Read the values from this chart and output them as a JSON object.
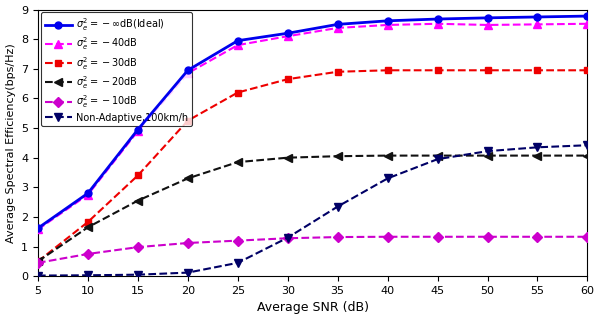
{
  "snr": [
    5,
    10,
    15,
    20,
    25,
    30,
    35,
    40,
    45,
    50,
    55,
    60
  ],
  "ideal": [
    1.62,
    2.8,
    4.95,
    6.95,
    7.95,
    8.2,
    8.5,
    8.62,
    8.68,
    8.72,
    8.75,
    8.78
  ],
  "m40dB": [
    1.58,
    2.75,
    4.9,
    6.85,
    7.8,
    8.1,
    8.38,
    8.48,
    8.52,
    8.48,
    8.5,
    8.52
  ],
  "m30dB": [
    0.5,
    1.83,
    3.4,
    5.25,
    6.2,
    6.65,
    6.9,
    6.95,
    6.95,
    6.95,
    6.95,
    6.95
  ],
  "m20dB": [
    0.5,
    1.65,
    2.55,
    3.3,
    3.85,
    4.0,
    4.05,
    4.07,
    4.07,
    4.07,
    4.07,
    4.07
  ],
  "m10dB": [
    0.45,
    0.75,
    0.98,
    1.12,
    1.2,
    1.28,
    1.32,
    1.33,
    1.33,
    1.33,
    1.33,
    1.33
  ],
  "nonadaptive": [
    0.02,
    0.03,
    0.05,
    0.12,
    0.45,
    1.3,
    2.35,
    3.3,
    3.95,
    4.22,
    4.35,
    4.42
  ],
  "colors": {
    "ideal": "#0000ee",
    "m40dB": "#ff00ff",
    "m30dB": "#ee0000",
    "m20dB": "#111111",
    "m10dB": "#cc00cc",
    "nonadaptive": "#000066"
  },
  "labels": {
    "ideal": "$\\sigma_e^2 = -\\infty$dB(Ideal)",
    "m40dB": "$\\sigma_e^2 = -40$dB",
    "m30dB": "$\\sigma_e^2 = -30$dB",
    "m20dB": "$\\sigma_e^2 = -20$dB",
    "m10dB": "$\\sigma_e^2 = -10$dB",
    "nonadaptive": "Non-Adaptive,100km/h"
  },
  "xlabel": "Average SNR (dB)",
  "ylabel": "Average Spectral Efficiency(bps/Hz)",
  "xlim": [
    5,
    60
  ],
  "ylim": [
    0,
    9
  ],
  "xticks": [
    5,
    10,
    15,
    20,
    25,
    30,
    35,
    40,
    45,
    50,
    55,
    60
  ],
  "yticks": [
    0,
    1,
    2,
    3,
    4,
    5,
    6,
    7,
    8,
    9
  ],
  "figsize": [
    6.0,
    3.2
  ],
  "dpi": 100
}
